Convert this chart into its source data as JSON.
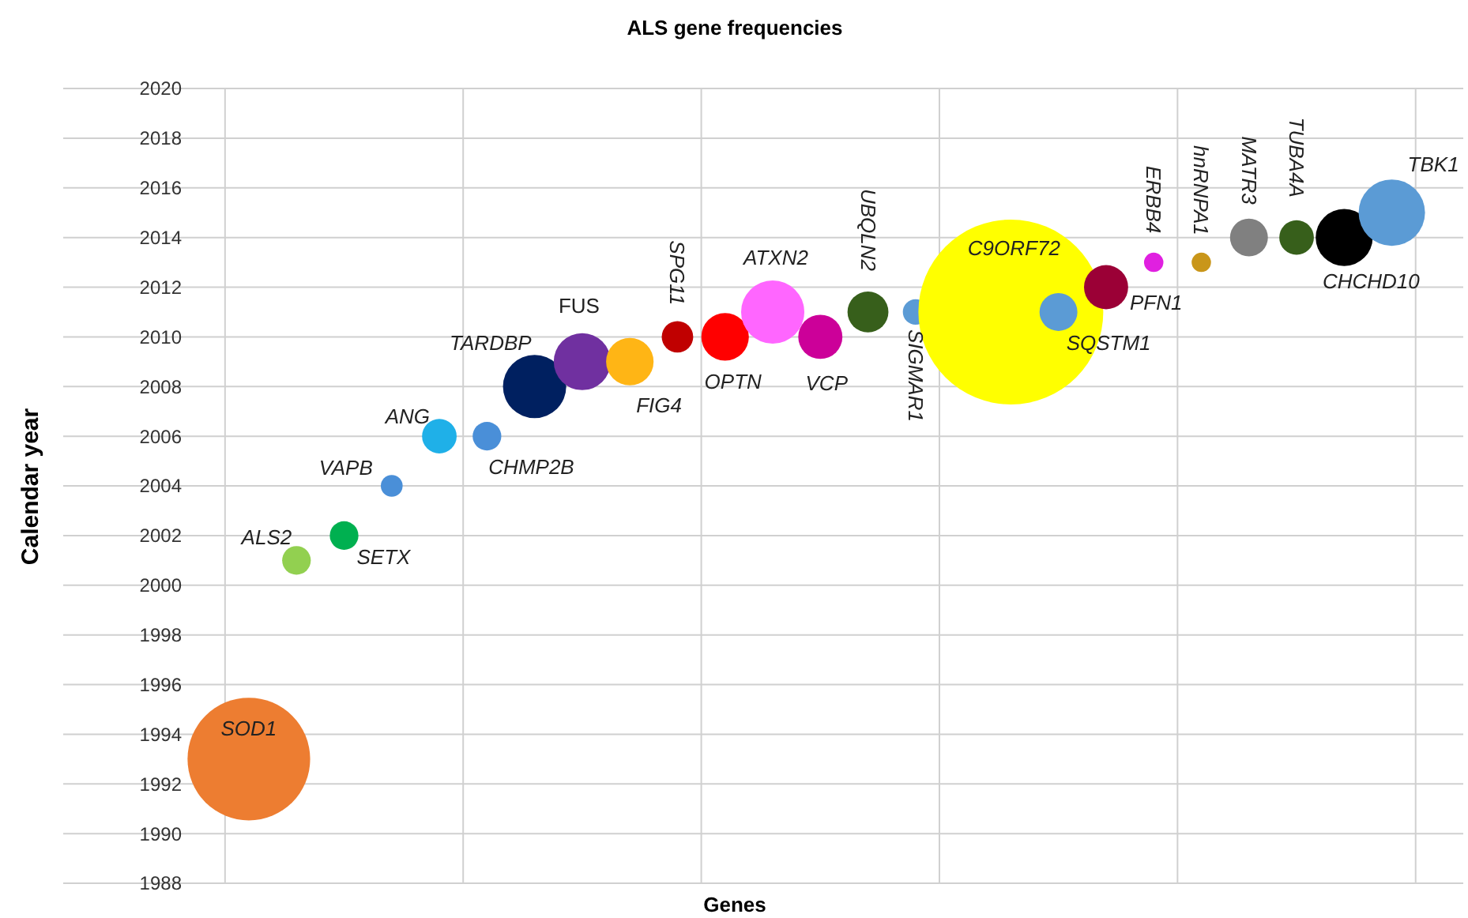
{
  "chart_data": {
    "type": "bubble",
    "title": "ALS gene frequencies",
    "xlabel": "Genes",
    "ylabel": "Calendar year",
    "categories": [
      null,
      null,
      null,
      null,
      null,
      null,
      null,
      null,
      null,
      null,
      null,
      null,
      null,
      null,
      null,
      null,
      null,
      null,
      null,
      null,
      null,
      null,
      null,
      null,
      null,
      null,
      null,
      null,
      null
    ],
    "ylim": [
      1988,
      2020
    ],
    "yticks": [
      1988,
      1990,
      1992,
      1994,
      1996,
      1998,
      2000,
      2002,
      2004,
      2006,
      2008,
      2010,
      2012,
      2014,
      2016,
      2018,
      2020
    ],
    "grid": true,
    "series": [
      {
        "name": "SOD1",
        "color": "#ed7d31",
        "values": [
          null,
          null,
          null,
          1993,
          null,
          null,
          null,
          null,
          null,
          null,
          null,
          null,
          null,
          null,
          null,
          null,
          null,
          null,
          null,
          null,
          null,
          null,
          null,
          null,
          null,
          null,
          null,
          null,
          null
        ],
        "sizes": [
          null,
          null,
          null,
          0.44,
          null,
          null,
          null,
          null,
          null,
          null,
          null,
          null,
          null,
          null,
          null,
          null,
          null,
          null,
          null,
          null,
          null,
          null,
          null,
          null,
          null,
          null,
          null,
          null,
          null
        ]
      },
      {
        "name": "ALS2",
        "color": "#92d050",
        "values": [
          null,
          null,
          null,
          null,
          2001,
          null,
          null,
          null,
          null,
          null,
          null,
          null,
          null,
          null,
          null,
          null,
          null,
          null,
          null,
          null,
          null,
          null,
          null,
          null,
          null,
          null,
          null,
          null,
          null
        ],
        "sizes": [
          null,
          null,
          null,
          null,
          0.024,
          null,
          null,
          null,
          null,
          null,
          null,
          null,
          null,
          null,
          null,
          null,
          null,
          null,
          null,
          null,
          null,
          null,
          null,
          null,
          null,
          null,
          null,
          null,
          null
        ]
      },
      {
        "name": "SETX",
        "color": "#00b050",
        "values": [
          null,
          null,
          null,
          null,
          null,
          2002,
          null,
          null,
          null,
          null,
          null,
          null,
          null,
          null,
          null,
          null,
          null,
          null,
          null,
          null,
          null,
          null,
          null,
          null,
          null,
          null,
          null,
          null,
          null
        ],
        "sizes": [
          null,
          null,
          null,
          null,
          null,
          0.024,
          null,
          null,
          null,
          null,
          null,
          null,
          null,
          null,
          null,
          null,
          null,
          null,
          null,
          null,
          null,
          null,
          null,
          null,
          null,
          null,
          null,
          null,
          null
        ]
      },
      {
        "name": "VAPB",
        "color": "#4a8fd8",
        "values": [
          null,
          null,
          null,
          null,
          null,
          null,
          2004,
          null,
          null,
          null,
          null,
          null,
          null,
          null,
          null,
          null,
          null,
          null,
          null,
          null,
          null,
          null,
          null,
          null,
          null,
          null,
          null,
          null,
          null
        ],
        "sizes": [
          null,
          null,
          null,
          null,
          null,
          null,
          0.014,
          null,
          null,
          null,
          null,
          null,
          null,
          null,
          null,
          null,
          null,
          null,
          null,
          null,
          null,
          null,
          null,
          null,
          null,
          null,
          null,
          null,
          null
        ]
      },
      {
        "name": "ANG",
        "color": "#1fb0e8",
        "values": [
          null,
          null,
          null,
          null,
          null,
          null,
          null,
          2006,
          null,
          null,
          null,
          null,
          null,
          null,
          null,
          null,
          null,
          null,
          null,
          null,
          null,
          null,
          null,
          null,
          null,
          null,
          null,
          null,
          null
        ],
        "sizes": [
          null,
          null,
          null,
          null,
          null,
          null,
          null,
          0.035,
          null,
          null,
          null,
          null,
          null,
          null,
          null,
          null,
          null,
          null,
          null,
          null,
          null,
          null,
          null,
          null,
          null,
          null,
          null,
          null,
          null
        ]
      },
      {
        "name": "CHMP2B",
        "color": "#4a8fd8",
        "values": [
          null,
          null,
          null,
          null,
          null,
          null,
          null,
          null,
          2006,
          null,
          null,
          null,
          null,
          null,
          null,
          null,
          null,
          null,
          null,
          null,
          null,
          null,
          null,
          null,
          null,
          null,
          null,
          null,
          null
        ],
        "sizes": [
          null,
          null,
          null,
          null,
          null,
          null,
          null,
          null,
          0.024,
          null,
          null,
          null,
          null,
          null,
          null,
          null,
          null,
          null,
          null,
          null,
          null,
          null,
          null,
          null,
          null,
          null,
          null,
          null,
          null
        ]
      },
      {
        "name": "TARDBP",
        "color": "#002060",
        "values": [
          null,
          null,
          null,
          null,
          null,
          null,
          null,
          null,
          null,
          2008,
          null,
          null,
          null,
          null,
          null,
          null,
          null,
          null,
          null,
          null,
          null,
          null,
          null,
          null,
          null,
          null,
          null,
          null,
          null
        ],
        "sizes": [
          null,
          null,
          null,
          null,
          null,
          null,
          null,
          null,
          null,
          0.117,
          null,
          null,
          null,
          null,
          null,
          null,
          null,
          null,
          null,
          null,
          null,
          null,
          null,
          null,
          null,
          null,
          null,
          null,
          null
        ]
      },
      {
        "name": "FUS",
        "color": "#7030a0",
        "values": [
          null,
          null,
          null,
          null,
          null,
          null,
          null,
          null,
          null,
          null,
          2009,
          null,
          null,
          null,
          null,
          null,
          null,
          null,
          null,
          null,
          null,
          null,
          null,
          null,
          null,
          null,
          null,
          null,
          null
        ],
        "sizes": [
          null,
          null,
          null,
          null,
          null,
          null,
          null,
          null,
          null,
          null,
          0.095,
          null,
          null,
          null,
          null,
          null,
          null,
          null,
          null,
          null,
          null,
          null,
          null,
          null,
          null,
          null,
          null,
          null,
          null
        ]
      },
      {
        "name": "FIG4",
        "color": "#ffb515",
        "values": [
          null,
          null,
          null,
          null,
          null,
          null,
          null,
          null,
          null,
          null,
          null,
          2009,
          null,
          null,
          null,
          null,
          null,
          null,
          null,
          null,
          null,
          null,
          null,
          null,
          null,
          null,
          null,
          null,
          null
        ],
        "sizes": [
          null,
          null,
          null,
          null,
          null,
          null,
          null,
          null,
          null,
          null,
          null,
          0.066,
          null,
          null,
          null,
          null,
          null,
          null,
          null,
          null,
          null,
          null,
          null,
          null,
          null,
          null,
          null,
          null,
          null
        ]
      },
      {
        "name": "SPG11",
        "color": "#c00000",
        "values": [
          null,
          null,
          null,
          null,
          null,
          null,
          null,
          null,
          null,
          null,
          null,
          null,
          2010,
          null,
          null,
          null,
          null,
          null,
          null,
          null,
          null,
          null,
          null,
          null,
          null,
          null,
          null,
          null,
          null
        ],
        "sizes": [
          null,
          null,
          null,
          null,
          null,
          null,
          null,
          null,
          null,
          null,
          null,
          null,
          0.029,
          null,
          null,
          null,
          null,
          null,
          null,
          null,
          null,
          null,
          null,
          null,
          null,
          null,
          null,
          null,
          null
        ]
      },
      {
        "name": "OPTN",
        "color": "#ff0000",
        "values": [
          null,
          null,
          null,
          null,
          null,
          null,
          null,
          null,
          null,
          null,
          null,
          null,
          null,
          2010,
          null,
          null,
          null,
          null,
          null,
          null,
          null,
          null,
          null,
          null,
          null,
          null,
          null,
          null,
          null
        ],
        "sizes": [
          null,
          null,
          null,
          null,
          null,
          null,
          null,
          null,
          null,
          null,
          null,
          null,
          null,
          0.066,
          null,
          null,
          null,
          null,
          null,
          null,
          null,
          null,
          null,
          null,
          null,
          null,
          null,
          null,
          null
        ]
      },
      {
        "name": "ATXN2",
        "color": "#ff66ff",
        "values": [
          null,
          null,
          null,
          null,
          null,
          null,
          null,
          null,
          null,
          null,
          null,
          null,
          null,
          null,
          2011,
          null,
          null,
          null,
          null,
          null,
          null,
          null,
          null,
          null,
          null,
          null,
          null,
          null,
          null
        ],
        "sizes": [
          null,
          null,
          null,
          null,
          null,
          null,
          null,
          null,
          null,
          null,
          null,
          null,
          null,
          null,
          0.117,
          null,
          null,
          null,
          null,
          null,
          null,
          null,
          null,
          null,
          null,
          null,
          null,
          null,
          null
        ]
      },
      {
        "name": "VCP",
        "color": "#cc0099",
        "values": [
          null,
          null,
          null,
          null,
          null,
          null,
          null,
          null,
          null,
          null,
          null,
          null,
          null,
          null,
          null,
          2010,
          null,
          null,
          null,
          null,
          null,
          null,
          null,
          null,
          null,
          null,
          null,
          null,
          null
        ],
        "sizes": [
          null,
          null,
          null,
          null,
          null,
          null,
          null,
          null,
          null,
          null,
          null,
          null,
          null,
          null,
          null,
          0.057,
          null,
          null,
          null,
          null,
          null,
          null,
          null,
          null,
          null,
          null,
          null,
          null,
          null
        ]
      },
      {
        "name": "UBQLN2",
        "color": "#375f1b",
        "values": [
          null,
          null,
          null,
          null,
          null,
          null,
          null,
          null,
          null,
          null,
          null,
          null,
          null,
          null,
          null,
          null,
          2011,
          null,
          null,
          null,
          null,
          null,
          null,
          null,
          null,
          null,
          null,
          null,
          null
        ],
        "sizes": [
          null,
          null,
          null,
          null,
          null,
          null,
          null,
          null,
          null,
          null,
          null,
          null,
          null,
          null,
          null,
          null,
          0.049,
          null,
          null,
          null,
          null,
          null,
          null,
          null,
          null,
          null,
          null,
          null,
          null
        ]
      },
      {
        "name": "SIGMAR1",
        "color": "#5b9bd5",
        "values": [
          null,
          null,
          null,
          null,
          null,
          null,
          null,
          null,
          null,
          null,
          null,
          null,
          null,
          null,
          null,
          null,
          null,
          2011,
          null,
          null,
          null,
          null,
          null,
          null,
          null,
          null,
          null,
          null,
          null
        ],
        "sizes": [
          null,
          null,
          null,
          null,
          null,
          null,
          null,
          null,
          null,
          null,
          null,
          null,
          null,
          null,
          null,
          null,
          null,
          0.019,
          null,
          null,
          null,
          null,
          null,
          null,
          null,
          null,
          null,
          null,
          null
        ]
      },
      {
        "name": "C9ORF72",
        "color": "#ffff00",
        "values": [
          null,
          null,
          null,
          null,
          null,
          null,
          null,
          null,
          null,
          null,
          null,
          null,
          null,
          null,
          null,
          null,
          null,
          null,
          null,
          2011,
          null,
          null,
          null,
          null,
          null,
          null,
          null,
          null,
          null
        ],
        "sizes": [
          null,
          null,
          null,
          null,
          null,
          null,
          null,
          null,
          null,
          null,
          null,
          null,
          null,
          null,
          null,
          null,
          null,
          null,
          null,
          1,
          null,
          null,
          null,
          null,
          null,
          null,
          null,
          null,
          null
        ]
      },
      {
        "name": "SQSTM1",
        "color": "#5b9bd5",
        "values": [
          null,
          null,
          null,
          null,
          null,
          null,
          null,
          null,
          null,
          null,
          null,
          null,
          null,
          null,
          null,
          null,
          null,
          null,
          null,
          null,
          2011,
          null,
          null,
          null,
          null,
          null,
          null,
          null,
          null
        ],
        "sizes": [
          null,
          null,
          null,
          null,
          null,
          null,
          null,
          null,
          null,
          null,
          null,
          null,
          null,
          null,
          null,
          null,
          null,
          null,
          null,
          null,
          0.042,
          null,
          null,
          null,
          null,
          null,
          null,
          null,
          null
        ]
      },
      {
        "name": "PFN1",
        "color": "#9b0036",
        "values": [
          null,
          null,
          null,
          null,
          null,
          null,
          null,
          null,
          null,
          null,
          null,
          null,
          null,
          null,
          null,
          null,
          null,
          null,
          null,
          null,
          null,
          2012,
          null,
          null,
          null,
          null,
          null,
          null,
          null
        ],
        "sizes": [
          null,
          null,
          null,
          null,
          null,
          null,
          null,
          null,
          null,
          null,
          null,
          null,
          null,
          null,
          null,
          null,
          null,
          null,
          null,
          null,
          null,
          0.057,
          null,
          null,
          null,
          null,
          null,
          null,
          null
        ]
      },
      {
        "name": "ERBB4",
        "color": "#e020e0",
        "values": [
          null,
          null,
          null,
          null,
          null,
          null,
          null,
          null,
          null,
          null,
          null,
          null,
          null,
          null,
          null,
          null,
          null,
          null,
          null,
          null,
          null,
          null,
          2013,
          null,
          null,
          null,
          null,
          null,
          null
        ],
        "sizes": [
          null,
          null,
          null,
          null,
          null,
          null,
          null,
          null,
          null,
          null,
          null,
          null,
          null,
          null,
          null,
          null,
          null,
          null,
          null,
          null,
          null,
          null,
          0.011,
          null,
          null,
          null,
          null,
          null,
          null
        ]
      },
      {
        "name": "hnRNPA1",
        "color": "#c9961a",
        "values": [
          null,
          null,
          null,
          null,
          null,
          null,
          null,
          null,
          null,
          null,
          null,
          null,
          null,
          null,
          null,
          null,
          null,
          null,
          null,
          null,
          null,
          null,
          null,
          2013,
          null,
          null,
          null,
          null,
          null
        ],
        "sizes": [
          null,
          null,
          null,
          null,
          null,
          null,
          null,
          null,
          null,
          null,
          null,
          null,
          null,
          null,
          null,
          null,
          null,
          null,
          null,
          null,
          null,
          null,
          null,
          0.011,
          null,
          null,
          null,
          null,
          null
        ]
      },
      {
        "name": "MATR3",
        "color": "#808080",
        "values": [
          null,
          null,
          null,
          null,
          null,
          null,
          null,
          null,
          null,
          null,
          null,
          null,
          null,
          null,
          null,
          null,
          null,
          null,
          null,
          null,
          null,
          null,
          null,
          null,
          2014,
          null,
          null,
          null,
          null
        ],
        "sizes": [
          null,
          null,
          null,
          null,
          null,
          null,
          null,
          null,
          null,
          null,
          null,
          null,
          null,
          null,
          null,
          null,
          null,
          null,
          null,
          null,
          null,
          null,
          null,
          null,
          0.042,
          null,
          null,
          null,
          null
        ]
      },
      {
        "name": "TUBA4A",
        "color": "#375f1b",
        "values": [
          null,
          null,
          null,
          null,
          null,
          null,
          null,
          null,
          null,
          null,
          null,
          null,
          null,
          null,
          null,
          null,
          null,
          null,
          null,
          null,
          null,
          null,
          null,
          null,
          null,
          2014,
          null,
          null,
          null
        ],
        "sizes": [
          null,
          null,
          null,
          null,
          null,
          null,
          null,
          null,
          null,
          null,
          null,
          null,
          null,
          null,
          null,
          null,
          null,
          null,
          null,
          null,
          null,
          null,
          null,
          null,
          null,
          0.035,
          null,
          null,
          null
        ]
      },
      {
        "name": "CHCHD10",
        "color": "#000000",
        "values": [
          null,
          null,
          null,
          null,
          null,
          null,
          null,
          null,
          null,
          null,
          null,
          null,
          null,
          null,
          null,
          null,
          null,
          null,
          null,
          null,
          null,
          null,
          null,
          null,
          null,
          null,
          2014,
          null,
          null
        ],
        "sizes": [
          null,
          null,
          null,
          null,
          null,
          null,
          null,
          null,
          null,
          null,
          null,
          null,
          null,
          null,
          null,
          null,
          null,
          null,
          null,
          null,
          null,
          null,
          null,
          null,
          null,
          null,
          0.095,
          null,
          null
        ]
      },
      {
        "name": "TBK1",
        "color": "#5b9bd5",
        "values": [
          null,
          null,
          null,
          null,
          null,
          null,
          null,
          null,
          null,
          null,
          null,
          null,
          null,
          null,
          null,
          null,
          null,
          null,
          null,
          null,
          null,
          null,
          null,
          null,
          null,
          null,
          null,
          2015,
          null
        ],
        "sizes": [
          null,
          null,
          null,
          null,
          null,
          null,
          null,
          null,
          null,
          null,
          null,
          null,
          null,
          null,
          null,
          null,
          null,
          null,
          null,
          null,
          null,
          null,
          null,
          null,
          null,
          null,
          null,
          0.129,
          null
        ]
      }
    ]
  }
}
